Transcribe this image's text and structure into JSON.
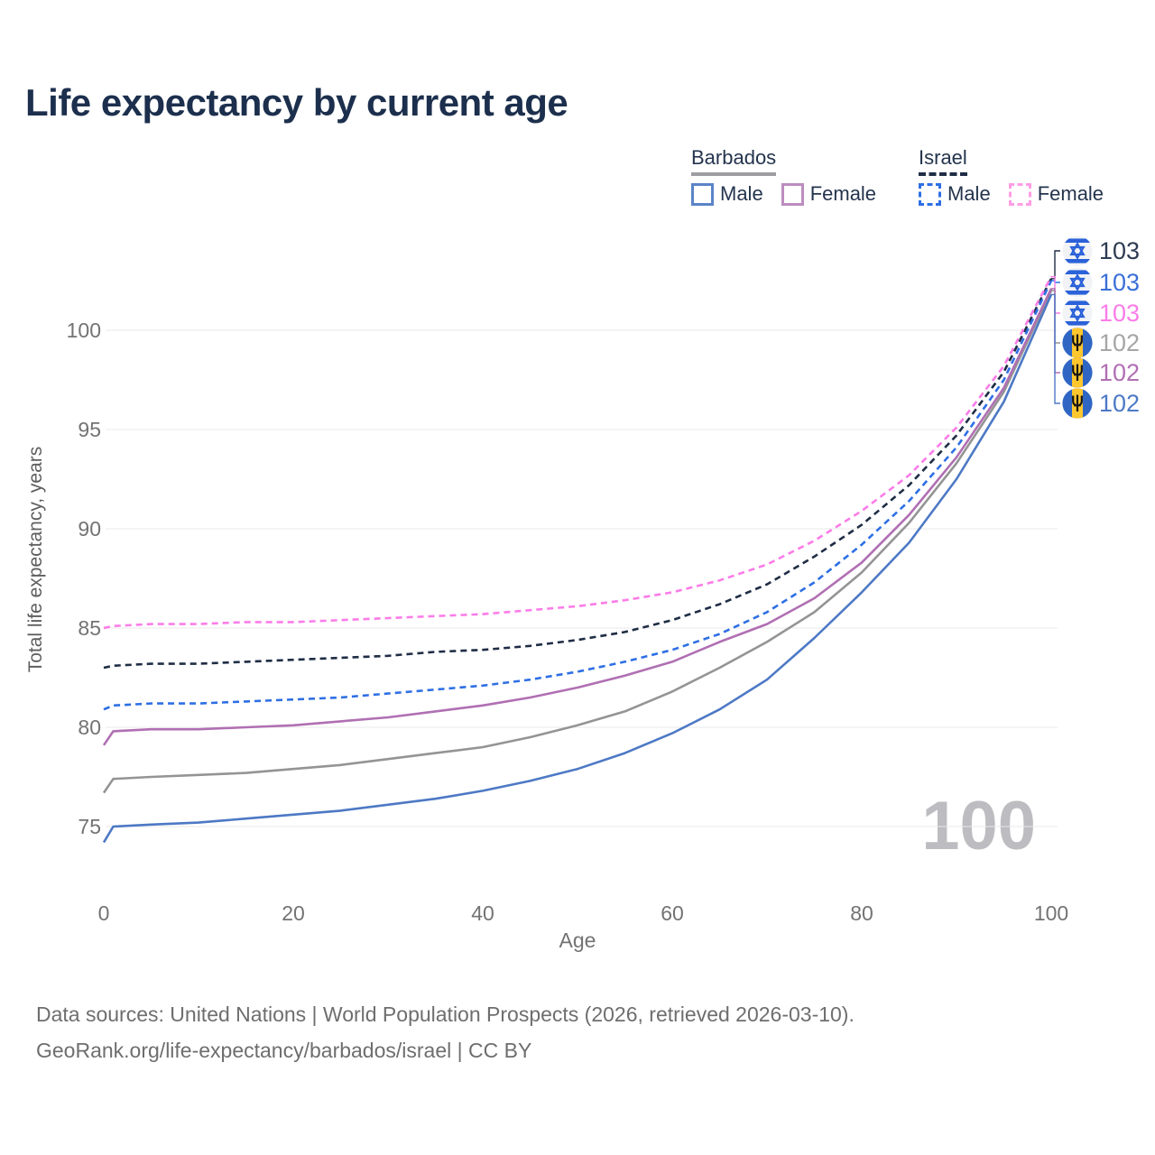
{
  "title": "Life expectancy by current age",
  "watermark": "100",
  "colors": {
    "title": "#1c2f4d",
    "grid": "#e8e8ea",
    "axis_text": "#737373",
    "watermark": "#bdbdc1",
    "footer": "#6e6e6e",
    "legend_text": "#24344d"
  },
  "legend": {
    "groups": [
      {
        "id": "barbados",
        "label": "Barbados",
        "line_color": "#9e9ea2",
        "line_style": "solid",
        "items": [
          {
            "label": "Male",
            "color": "#5b84c8",
            "line_style": "solid"
          },
          {
            "label": "Female",
            "color": "#bc8cc0",
            "line_style": "solid"
          }
        ]
      },
      {
        "id": "israel",
        "label": "Israel",
        "line_color": "#1f2d45",
        "line_style": "dashed",
        "items": [
          {
            "label": "Male",
            "color": "#2e6fe4",
            "line_style": "dashed"
          },
          {
            "label": "Female",
            "color": "#ff9ce4",
            "line_style": "dashed"
          }
        ]
      }
    ]
  },
  "chart_data": {
    "type": "line",
    "title": "Life expectancy by current age",
    "xlabel": "Age",
    "ylabel": "Total life expectancy, years",
    "xlim": [
      0,
      100
    ],
    "ylim": [
      73,
      104
    ],
    "grid": "horizontal-only",
    "x_ticks": [
      0,
      20,
      40,
      60,
      80,
      100
    ],
    "y_ticks": [
      75,
      80,
      85,
      90,
      95,
      100
    ],
    "x": [
      0,
      1,
      5,
      10,
      15,
      20,
      25,
      30,
      35,
      40,
      45,
      50,
      55,
      60,
      65,
      70,
      75,
      80,
      85,
      90,
      95,
      100
    ],
    "series": [
      {
        "id": "bb_total",
        "name": "Barbados Total",
        "country": "Barbados",
        "sex": "Both",
        "style": "solid",
        "color": "#949494",
        "values": [
          76.7,
          77.4,
          77.5,
          77.6,
          77.7,
          77.9,
          78.1,
          78.4,
          78.7,
          79.0,
          79.5,
          80.1,
          80.8,
          81.8,
          83.0,
          84.3,
          85.8,
          87.8,
          90.3,
          93.3,
          96.9,
          102.0
        ]
      },
      {
        "id": "bb_female",
        "name": "Barbados Female",
        "country": "Barbados",
        "sex": "Female",
        "style": "solid",
        "color": "#b06fb3",
        "values": [
          79.1,
          79.8,
          79.9,
          79.9,
          80.0,
          80.1,
          80.3,
          80.5,
          80.8,
          81.1,
          81.5,
          82.0,
          82.6,
          83.3,
          84.3,
          85.2,
          86.5,
          88.3,
          90.7,
          93.6,
          97.1,
          102.1
        ]
      },
      {
        "id": "bb_male",
        "name": "Barbados Male",
        "country": "Barbados",
        "sex": "Male",
        "style": "solid",
        "color": "#4d79c5",
        "values": [
          74.2,
          75.0,
          75.1,
          75.2,
          75.4,
          75.6,
          75.8,
          76.1,
          76.4,
          76.8,
          77.3,
          77.9,
          78.7,
          79.7,
          80.9,
          82.4,
          84.5,
          86.8,
          89.3,
          92.5,
          96.4,
          101.8
        ]
      },
      {
        "id": "il_total",
        "name": "Israel Total",
        "country": "Israel",
        "sex": "Both",
        "style": "dashed",
        "color": "#1f2d45",
        "values": [
          83.0,
          83.1,
          83.2,
          83.2,
          83.3,
          83.4,
          83.5,
          83.6,
          83.8,
          83.9,
          84.1,
          84.4,
          84.8,
          85.4,
          86.2,
          87.2,
          88.6,
          90.2,
          92.2,
          94.7,
          97.9,
          102.6
        ]
      },
      {
        "id": "il_male",
        "name": "Israel Male",
        "country": "Israel",
        "sex": "Male",
        "style": "dashed",
        "color": "#2e6fe4",
        "values": [
          80.9,
          81.1,
          81.2,
          81.2,
          81.3,
          81.4,
          81.5,
          81.7,
          81.9,
          82.1,
          82.4,
          82.8,
          83.3,
          83.9,
          84.7,
          85.8,
          87.3,
          89.2,
          91.4,
          94.1,
          97.5,
          102.5
        ]
      },
      {
        "id": "il_female",
        "name": "Israel Female",
        "country": "Israel",
        "sex": "Female",
        "style": "dashed",
        "color": "#fb7ce8",
        "values": [
          85.0,
          85.1,
          85.2,
          85.2,
          85.3,
          85.3,
          85.4,
          85.5,
          85.6,
          85.7,
          85.9,
          86.1,
          86.4,
          86.8,
          87.4,
          88.2,
          89.4,
          90.9,
          92.7,
          95.1,
          98.2,
          102.7
        ]
      }
    ],
    "end_labels": [
      {
        "series": "il_total",
        "flag": "israel",
        "value": "103",
        "color": "#2d3b51"
      },
      {
        "series": "il_male",
        "flag": "israel",
        "value": "103",
        "color": "#3a6fd8"
      },
      {
        "series": "il_female",
        "flag": "israel",
        "value": "103",
        "color": "#fb7ce8"
      },
      {
        "series": "bb_total",
        "flag": "barbados",
        "value": "102",
        "color": "#a6a6a6"
      },
      {
        "series": "bb_female",
        "flag": "barbados",
        "value": "102",
        "color": "#b06fb3"
      },
      {
        "series": "bb_male",
        "flag": "barbados",
        "value": "102",
        "color": "#4d79c5"
      }
    ]
  },
  "footer": {
    "line1": "Data sources: United Nations | World Population Prospects (2026, retrieved 2026-03-10).",
    "line2": "GeoRank.org/life-expectancy/barbados/israel | CC BY"
  }
}
